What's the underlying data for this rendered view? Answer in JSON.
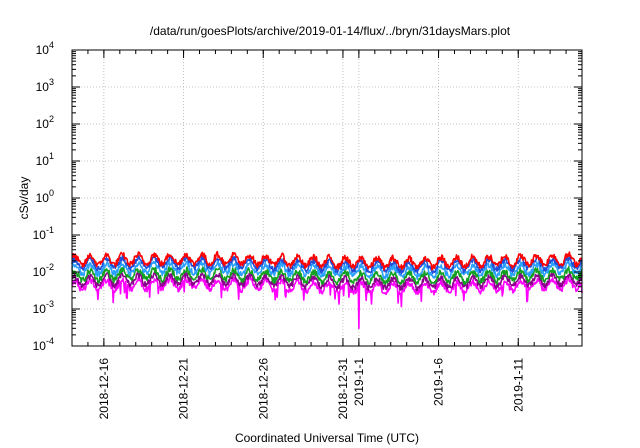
{
  "chart_data": {
    "type": "line",
    "title": "/data/run/goesPlots/archive/2019-01-14/flux/../bryn/31daysMars.plot",
    "xlabel": "Coordinated Universal Time (UTC)",
    "ylabel": "cSv/day",
    "yscale": "log",
    "ylim": [
      0.0001,
      10000
    ],
    "xlim": [
      "2018-12-14",
      "2019-01-15"
    ],
    "grid": true,
    "y_ticks": [
      {
        "base": "10",
        "exp": "-4",
        "value": 0.0001
      },
      {
        "base": "10",
        "exp": "-3",
        "value": 0.001
      },
      {
        "base": "10",
        "exp": "-2",
        "value": 0.01
      },
      {
        "base": "10",
        "exp": "-1",
        "value": 0.1
      },
      {
        "base": "10",
        "exp": "0",
        "value": 1
      },
      {
        "base": "10",
        "exp": "1",
        "value": 10
      },
      {
        "base": "10",
        "exp": "2",
        "value": 100
      },
      {
        "base": "10",
        "exp": "3",
        "value": 1000
      },
      {
        "base": "10",
        "exp": "4",
        "value": 10000
      }
    ],
    "x_ticks": [
      {
        "label": "2018-12-16",
        "date": "2018-12-16"
      },
      {
        "label": "2018-12-21",
        "date": "2018-12-21"
      },
      {
        "label": "2018-12-26",
        "date": "2018-12-26"
      },
      {
        "label": "2018-12-31",
        "date": "2018-12-31"
      },
      {
        "label": "2019-1-1",
        "date": "2019-01-01"
      },
      {
        "label": "2019-1-6",
        "date": "2019-01-06"
      },
      {
        "label": "2019-1-11",
        "date": "2019-01-11"
      }
    ],
    "series": [
      {
        "color": "#ff0000",
        "level": 0.02,
        "min_drop": 0.02
      },
      {
        "color": "#1f4fd8",
        "level": 0.016,
        "min_drop": 0.016
      },
      {
        "color": "#2aa0ff",
        "level": 0.0115,
        "min_drop": 0.0115
      },
      {
        "color": "#12a020",
        "level": 0.0078,
        "min_drop": 0.0078
      },
      {
        "color": "#8b008b",
        "level": 0.0056,
        "min_drop": 0.0056
      },
      {
        "color": "#ff00ff",
        "level": 0.0042,
        "min_drop": 0.0003
      }
    ],
    "annotations": [
      {
        "series_color": "#ff00ff",
        "date": "2019-01-01",
        "value": 0.0003
      }
    ]
  }
}
